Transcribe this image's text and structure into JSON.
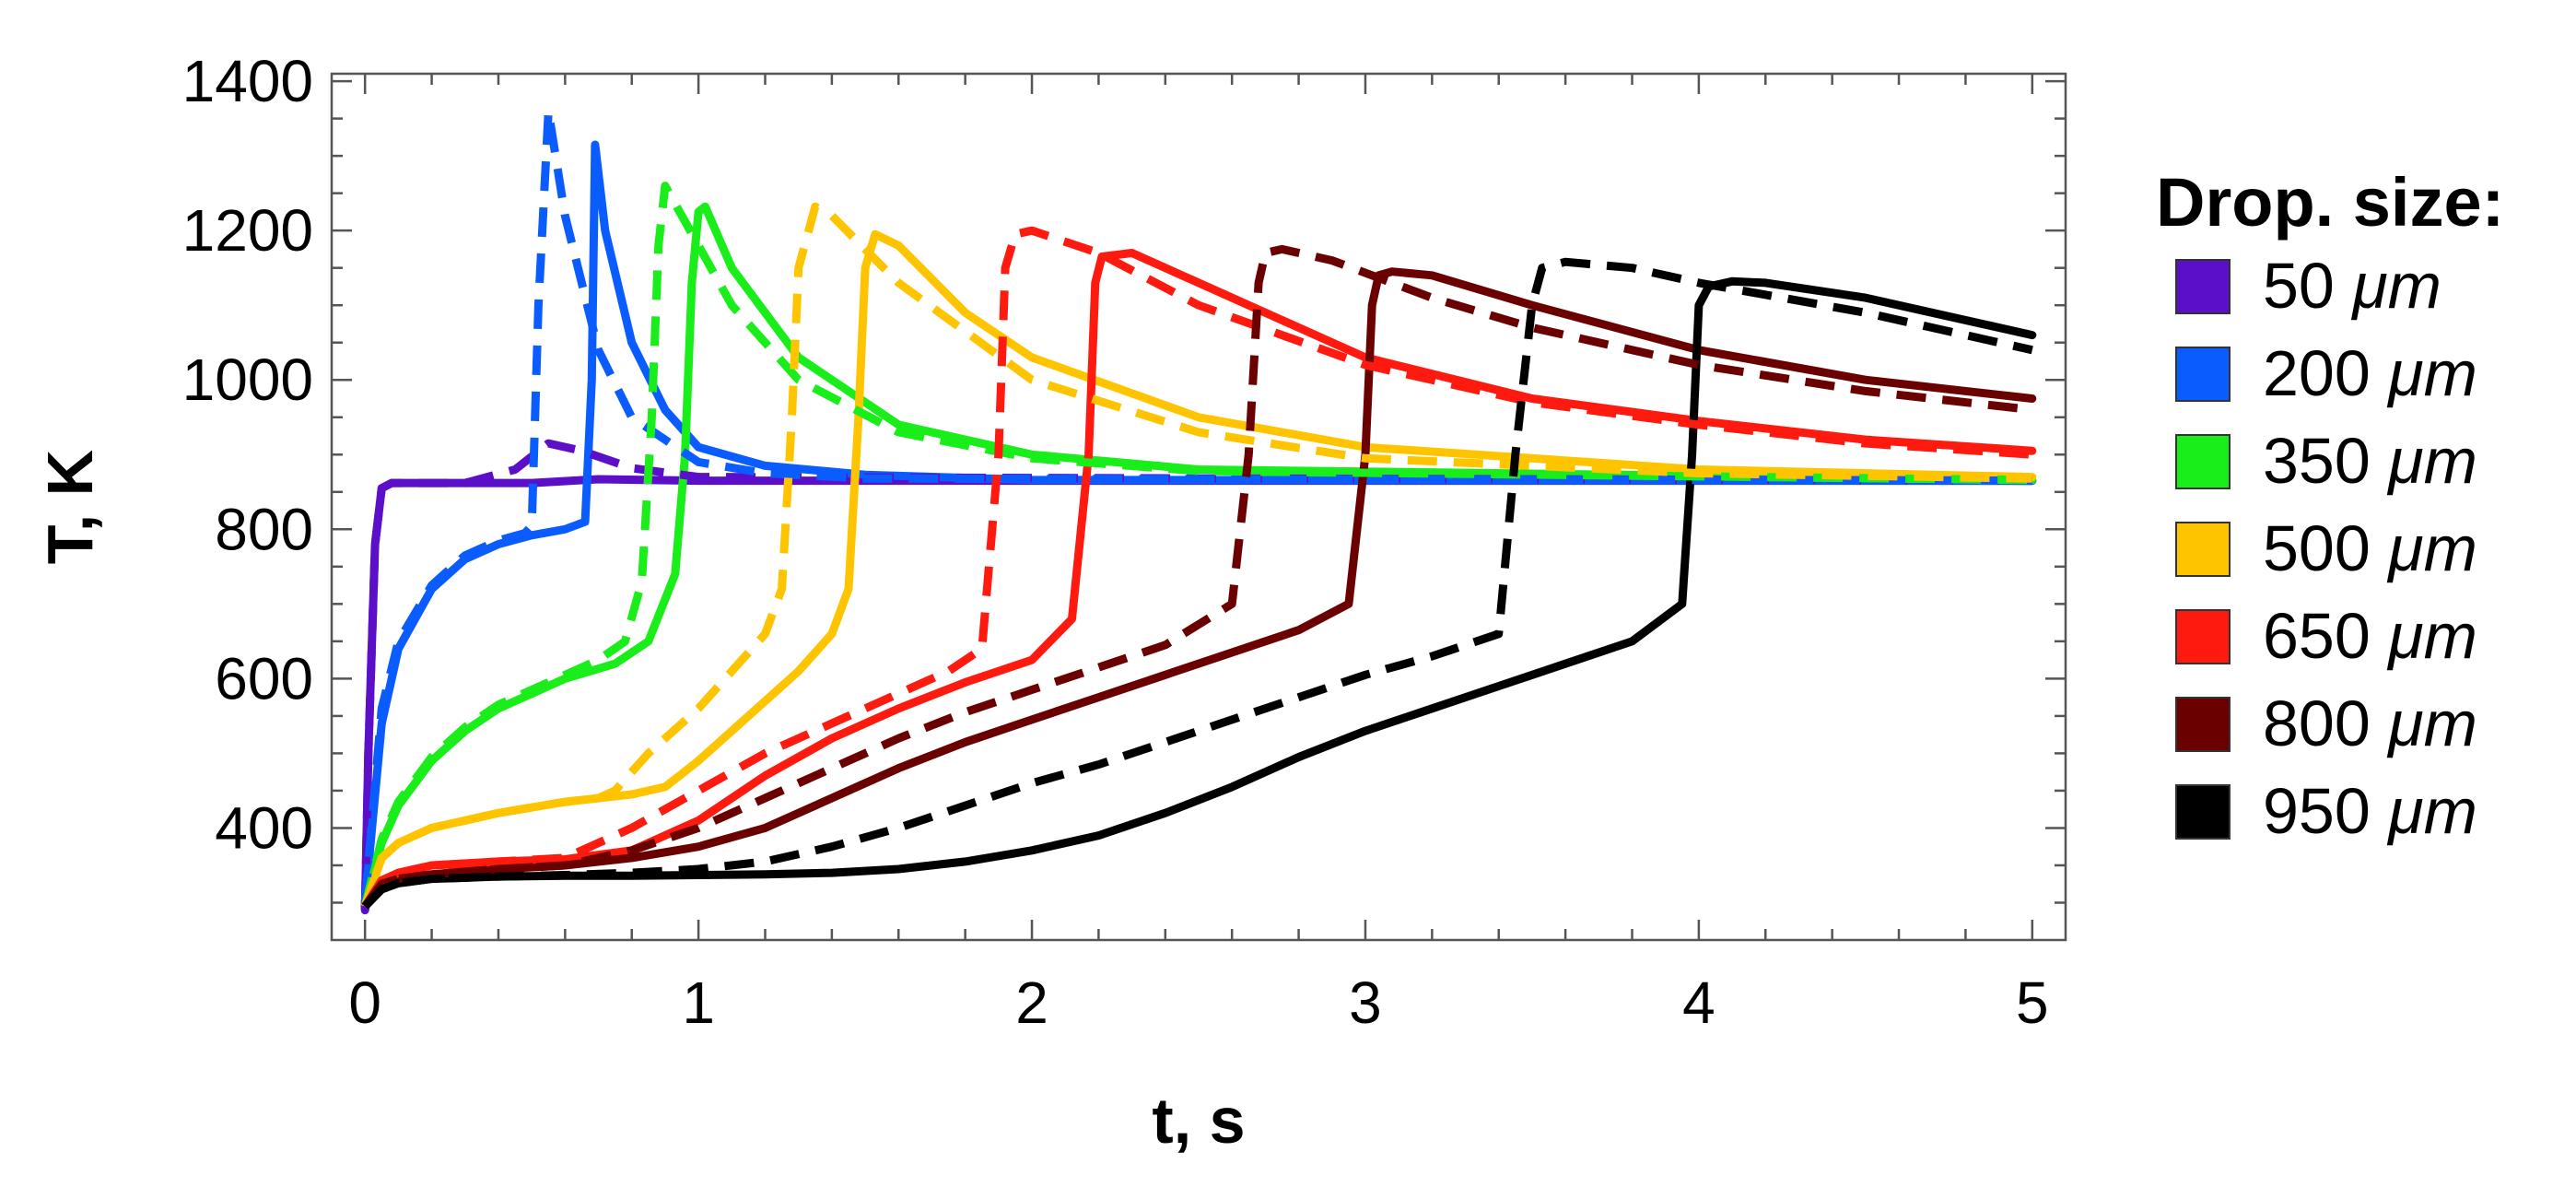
{
  "chart_data": {
    "type": "line",
    "xlabel": "t, s",
    "ylabel": "T, K",
    "xlim": [
      -0.1,
      5.1
    ],
    "ylim": [
      250,
      1410
    ],
    "xticks": [
      0,
      1,
      2,
      3,
      4,
      5
    ],
    "yticks": [
      400,
      600,
      800,
      1000,
      1200,
      1400
    ],
    "legend": {
      "title": "Drop. size:",
      "placement": "right",
      "entries": [
        "50 μm",
        "200 μm",
        "350 μm",
        "500 μm",
        "650 μm",
        "800 μm",
        "950 μm"
      ]
    },
    "series": [
      {
        "name": "50 μm",
        "color": "#5b0fc8",
        "style": "solid",
        "x": [
          0,
          0.01,
          0.03,
          0.05,
          0.08,
          0.3,
          0.5,
          0.7,
          1.0,
          5.0
        ],
        "y": [
          290,
          500,
          780,
          855,
          862,
          862,
          862,
          867,
          865,
          865
        ]
      },
      {
        "name": "50 μm",
        "color": "#5b0fc8",
        "style": "dashed",
        "x": [
          0,
          0.01,
          0.03,
          0.05,
          0.08,
          0.3,
          0.45,
          0.55,
          0.65,
          0.8,
          1.0,
          5.0
        ],
        "y": [
          290,
          500,
          780,
          855,
          862,
          862,
          880,
          915,
          905,
          882,
          870,
          865
        ]
      },
      {
        "name": "200 μm",
        "color": "#0a5cff",
        "style": "solid",
        "x": [
          0,
          0.05,
          0.1,
          0.2,
          0.3,
          0.4,
          0.5,
          0.6,
          0.66,
          0.68,
          0.69,
          0.72,
          0.8,
          0.9,
          1.0,
          1.2,
          1.5,
          2.0,
          5.0
        ],
        "y": [
          300,
          540,
          640,
          720,
          760,
          780,
          792,
          800,
          810,
          1000,
          1315,
          1200,
          1050,
          960,
          910,
          885,
          873,
          866,
          865
        ]
      },
      {
        "name": "200 μm",
        "color": "#0a5cff",
        "style": "dashed",
        "x": [
          0,
          0.05,
          0.1,
          0.2,
          0.3,
          0.4,
          0.48,
          0.5,
          0.52,
          0.55,
          0.6,
          0.7,
          0.8,
          1.0,
          1.2,
          1.5,
          5.0
        ],
        "y": [
          300,
          560,
          650,
          725,
          765,
          785,
          795,
          805,
          1100,
          1360,
          1220,
          1040,
          950,
          890,
          875,
          868,
          865
        ]
      },
      {
        "name": "350 μm",
        "color": "#1aee1a",
        "style": "solid",
        "x": [
          0,
          0.05,
          0.1,
          0.2,
          0.3,
          0.4,
          0.5,
          0.6,
          0.75,
          0.85,
          0.93,
          0.96,
          0.98,
          1.0,
          1.02,
          1.1,
          1.3,
          1.6,
          2.0,
          2.5,
          5.0
        ],
        "y": [
          295,
          380,
          430,
          490,
          530,
          560,
          580,
          600,
          620,
          650,
          740,
          900,
          1130,
          1225,
          1232,
          1150,
          1030,
          940,
          900,
          880,
          866
        ]
      },
      {
        "name": "350 μm",
        "color": "#1aee1a",
        "style": "dashed",
        "x": [
          0,
          0.05,
          0.1,
          0.2,
          0.3,
          0.4,
          0.5,
          0.6,
          0.7,
          0.78,
          0.83,
          0.86,
          0.88,
          0.9,
          0.95,
          1.1,
          1.3,
          1.6,
          2.0,
          2.5,
          5.0
        ],
        "y": [
          295,
          385,
          435,
          495,
          535,
          565,
          585,
          605,
          625,
          650,
          730,
          950,
          1180,
          1260,
          1220,
          1100,
          1000,
          930,
          895,
          878,
          866
        ]
      },
      {
        "name": "500 μm",
        "color": "#ffc400",
        "style": "solid",
        "x": [
          0,
          0.05,
          0.1,
          0.2,
          0.4,
          0.6,
          0.8,
          0.9,
          1.0,
          1.1,
          1.2,
          1.3,
          1.4,
          1.45,
          1.48,
          1.5,
          1.53,
          1.6,
          1.8,
          2.0,
          2.5,
          3.0,
          4.0,
          5.0
        ],
        "y": [
          295,
          360,
          380,
          400,
          420,
          435,
          445,
          455,
          490,
          530,
          570,
          610,
          660,
          720,
          950,
          1150,
          1195,
          1180,
          1090,
          1030,
          950,
          910,
          880,
          870
        ]
      },
      {
        "name": "500 μm",
        "color": "#ffc400",
        "style": "dashed",
        "x": [
          0,
          0.05,
          0.1,
          0.2,
          0.4,
          0.6,
          0.7,
          0.75,
          0.85,
          1.0,
          1.1,
          1.2,
          1.25,
          1.28,
          1.3,
          1.35,
          1.4,
          1.6,
          2.0,
          2.5,
          3.0,
          4.0,
          5.0
        ],
        "y": [
          295,
          360,
          380,
          400,
          420,
          435,
          440,
          450,
          500,
          560,
          610,
          660,
          720,
          950,
          1150,
          1232,
          1220,
          1130,
          1000,
          930,
          895,
          875,
          868
        ]
      },
      {
        "name": "650 μm",
        "color": "#ff1a10",
        "style": "solid",
        "x": [
          0,
          0.05,
          0.1,
          0.2,
          0.4,
          0.6,
          0.8,
          1.0,
          1.2,
          1.4,
          1.6,
          1.8,
          2.0,
          2.12,
          2.17,
          2.19,
          2.21,
          2.3,
          2.5,
          3.0,
          3.5,
          4.0,
          4.5,
          5.0
        ],
        "y": [
          295,
          330,
          340,
          350,
          355,
          358,
          370,
          410,
          470,
          520,
          560,
          595,
          625,
          680,
          900,
          1130,
          1165,
          1170,
          1130,
          1030,
          975,
          945,
          920,
          905
        ]
      },
      {
        "name": "650 μm",
        "color": "#ff1a10",
        "style": "dashed",
        "x": [
          0,
          0.05,
          0.1,
          0.2,
          0.4,
          0.6,
          0.8,
          1.0,
          1.2,
          1.4,
          1.6,
          1.75,
          1.85,
          1.9,
          1.92,
          1.95,
          2.0,
          2.2,
          2.5,
          3.0,
          3.5,
          4.0,
          4.5,
          5.0
        ],
        "y": [
          295,
          330,
          340,
          350,
          355,
          360,
          400,
          450,
          500,
          540,
          580,
          610,
          640,
          900,
          1150,
          1195,
          1200,
          1170,
          1100,
          1020,
          970,
          940,
          915,
          900
        ]
      },
      {
        "name": "800 μm",
        "color": "#6b0000",
        "style": "solid",
        "x": [
          0,
          0.05,
          0.1,
          0.2,
          0.4,
          0.6,
          0.8,
          1.0,
          1.2,
          1.4,
          1.6,
          1.8,
          2.0,
          2.2,
          2.4,
          2.6,
          2.8,
          2.95,
          3.0,
          3.02,
          3.04,
          3.08,
          3.2,
          3.5,
          4.0,
          4.5,
          5.0
        ],
        "y": [
          295,
          325,
          332,
          338,
          345,
          350,
          360,
          375,
          400,
          440,
          480,
          515,
          545,
          575,
          605,
          635,
          665,
          700,
          900,
          1100,
          1140,
          1145,
          1140,
          1100,
          1040,
          1000,
          975
        ]
      },
      {
        "name": "800 μm",
        "color": "#6b0000",
        "style": "dashed",
        "x": [
          0,
          0.05,
          0.1,
          0.2,
          0.4,
          0.6,
          0.8,
          1.0,
          1.2,
          1.4,
          1.6,
          1.8,
          2.0,
          2.2,
          2.4,
          2.6,
          2.65,
          2.68,
          2.7,
          2.75,
          2.9,
          3.2,
          3.5,
          4.0,
          4.5,
          5.0
        ],
        "y": [
          295,
          325,
          332,
          338,
          345,
          350,
          370,
          400,
          440,
          480,
          520,
          555,
          585,
          615,
          645,
          700,
          900,
          1130,
          1170,
          1175,
          1160,
          1110,
          1070,
          1020,
          985,
          960
        ]
      },
      {
        "name": "950 μm",
        "color": "#000000",
        "style": "solid",
        "x": [
          0,
          0.05,
          0.1,
          0.2,
          0.4,
          0.6,
          0.8,
          1.0,
          1.2,
          1.4,
          1.6,
          1.8,
          2.0,
          2.2,
          2.4,
          2.6,
          2.8,
          3.0,
          3.2,
          3.4,
          3.6,
          3.8,
          3.95,
          3.98,
          4.0,
          4.03,
          4.1,
          4.2,
          4.5,
          5.0
        ],
        "y": [
          295,
          318,
          326,
          332,
          335,
          336,
          336,
          337,
          338,
          340,
          345,
          355,
          370,
          390,
          420,
          455,
          495,
          530,
          560,
          590,
          620,
          650,
          700,
          900,
          1100,
          1125,
          1132,
          1130,
          1110,
          1060
        ]
      },
      {
        "name": "950 μm",
        "color": "#000000",
        "style": "dashed",
        "x": [
          0,
          0.05,
          0.1,
          0.2,
          0.4,
          0.6,
          0.8,
          1.0,
          1.2,
          1.4,
          1.6,
          1.8,
          2.0,
          2.2,
          2.4,
          2.6,
          2.8,
          3.0,
          3.2,
          3.4,
          3.45,
          3.5,
          3.53,
          3.6,
          3.8,
          4.0,
          4.5,
          5.0
        ],
        "y": [
          295,
          318,
          326,
          332,
          335,
          337,
          340,
          345,
          355,
          375,
          400,
          430,
          460,
          485,
          515,
          545,
          575,
          605,
          630,
          660,
          900,
          1100,
          1150,
          1158,
          1150,
          1130,
          1090,
          1040
        ]
      }
    ]
  }
}
